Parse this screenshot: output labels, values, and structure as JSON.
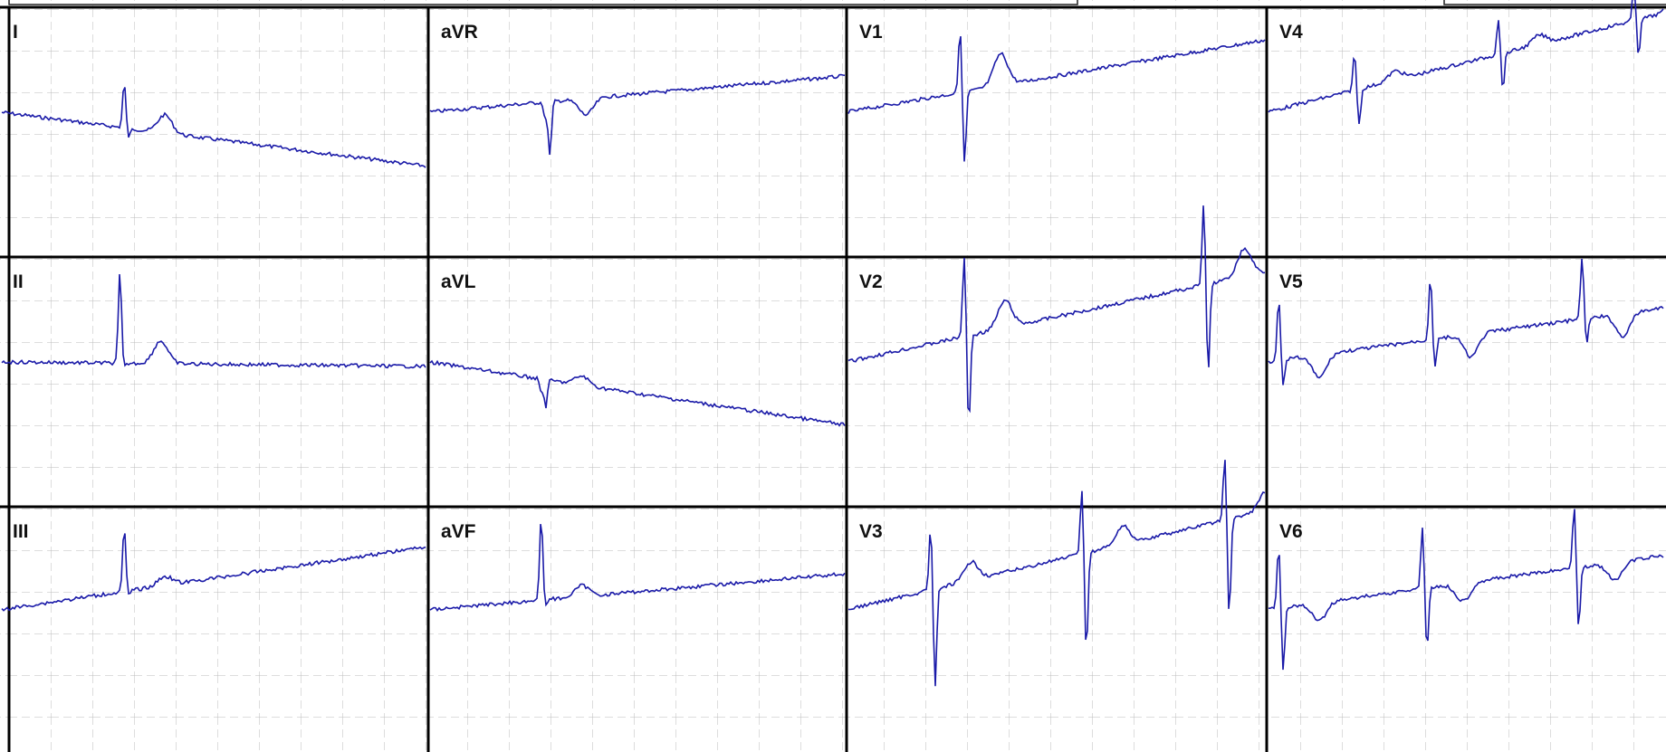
{
  "leads": [
    {
      "label": "I"
    },
    {
      "label": "aVR"
    },
    {
      "label": "V1"
    },
    {
      "label": "V4"
    },
    {
      "label": "II"
    },
    {
      "label": "aVL"
    },
    {
      "label": "V2"
    },
    {
      "label": "V5"
    },
    {
      "label": "III"
    },
    {
      "label": "aVF"
    },
    {
      "label": "V3"
    },
    {
      "label": "V6"
    }
  ]
}
